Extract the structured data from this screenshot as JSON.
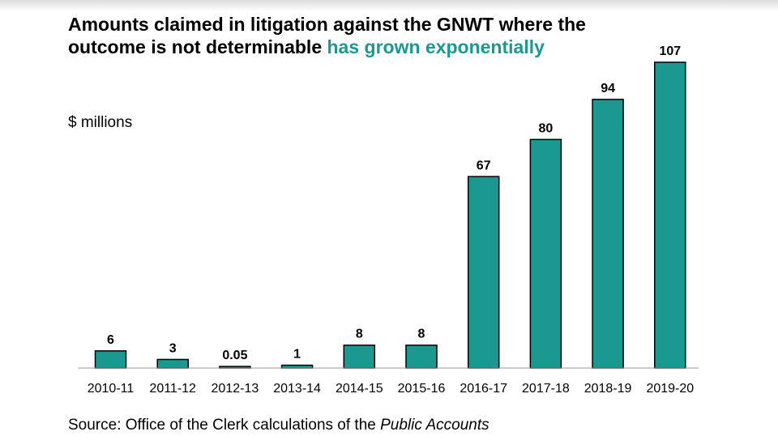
{
  "chart_data": {
    "type": "bar",
    "title_part1": "Amounts claimed in litigation against the GNWT where the outcome is not determinable ",
    "title_part2": "has grown exponentially",
    "ylabel": "$ millions",
    "xlabel": "",
    "categories": [
      "2010-11",
      "2011-12",
      "2012-13",
      "2013-14",
      "2014-15",
      "2015-16",
      "2016-17",
      "2017-18",
      "2018-19",
      "2019-20"
    ],
    "values": [
      6,
      3,
      0.05,
      1,
      8,
      8,
      67,
      80,
      94,
      107
    ],
    "data_labels": [
      "6",
      "3",
      "0.05",
      "1",
      "8",
      "8",
      "67",
      "80",
      "94",
      "107"
    ],
    "ylim": [
      0,
      110
    ],
    "grid": false,
    "legend": "none",
    "bar_color": "#1b9890",
    "title_highlight_color": "#1b9890"
  },
  "source": {
    "prefix": "Source:  Office of the Clerk calculations of the ",
    "emphasis": "Public Accounts"
  }
}
